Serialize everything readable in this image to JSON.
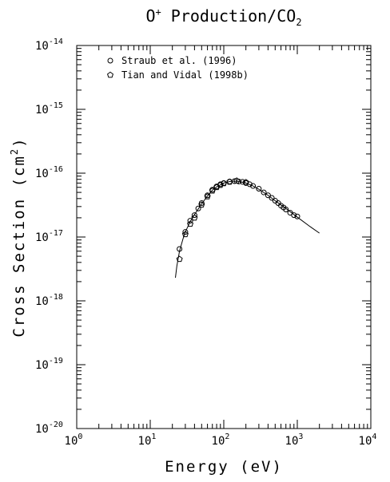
{
  "chart_data": {
    "type": "scatter",
    "title": {
      "base": "O",
      "sup": "+",
      "rest": " Production/CO",
      "sub": "2"
    },
    "xlabel": "Energy (eV)",
    "ylabel": {
      "base": "Cross Section (cm",
      "sup": "2",
      "end": ")"
    },
    "x_scale": "log",
    "y_scale": "log",
    "xlim": [
      1,
      10000
    ],
    "ylim": [
      1e-20,
      1e-14
    ],
    "x_ticks": [
      {
        "base": "10",
        "exp": "0"
      },
      {
        "base": "10",
        "exp": "1"
      },
      {
        "base": "10",
        "exp": "2"
      },
      {
        "base": "10",
        "exp": "3"
      },
      {
        "base": "10",
        "exp": "4"
      }
    ],
    "y_ticks": [
      {
        "base": "10",
        "exp": "-20"
      },
      {
        "base": "10",
        "exp": "-19"
      },
      {
        "base": "10",
        "exp": "-18"
      },
      {
        "base": "10",
        "exp": "-17"
      },
      {
        "base": "10",
        "exp": "-16"
      },
      {
        "base": "10",
        "exp": "-15"
      },
      {
        "base": "10",
        "exp": "-14"
      }
    ],
    "grid": false,
    "legend_position": "top-left",
    "series": [
      {
        "name": "Straub et al. (1996)",
        "marker": "circle",
        "x": [
          25,
          30,
          35,
          40,
          45,
          50,
          60,
          70,
          80,
          90,
          100,
          120,
          140,
          160,
          180,
          200,
          225,
          250,
          300,
          350,
          400,
          450,
          500,
          550,
          600,
          650,
          700,
          800,
          900,
          1000
        ],
        "y": [
          6.5e-18,
          1.2e-17,
          1.8e-17,
          2.2e-17,
          2.8e-17,
          3.4e-17,
          4.5e-17,
          5.5e-17,
          6.2e-17,
          6.7e-17,
          7e-17,
          7.4e-17,
          7.5e-17,
          7.4e-17,
          7.3e-17,
          7e-17,
          6.7e-17,
          6.3e-17,
          5.7e-17,
          5e-17,
          4.5e-17,
          4.1e-17,
          3.7e-17,
          3.4e-17,
          3.1e-17,
          2.9e-17,
          2.7e-17,
          2.4e-17,
          2.2e-17,
          2.1e-17
        ]
      },
      {
        "name": "Tian and Vidal (1998b)",
        "marker": "pentagon",
        "x": [
          25,
          30,
          35,
          40,
          50,
          60,
          70,
          80,
          90,
          100,
          120,
          150,
          200
        ],
        "y": [
          4.5e-18,
          1.1e-17,
          1.6e-17,
          2e-17,
          3.2e-17,
          4.3e-17,
          5.3e-17,
          6e-17,
          6.5e-17,
          6.9e-17,
          7.3e-17,
          7.6e-17,
          7.2e-17
        ]
      },
      {
        "name": "",
        "marker": "none",
        "line": true,
        "x": [
          22,
          23,
          25,
          28,
          30,
          35,
          40,
          50,
          60,
          70,
          80,
          100,
          120,
          150,
          200,
          250,
          300,
          400,
          500,
          700,
          1000,
          1500,
          2000
        ],
        "y": [
          2.3e-18,
          3.5e-18,
          6e-18,
          9.5e-18,
          1.2e-17,
          1.75e-17,
          2.25e-17,
          3.3e-17,
          4.4e-17,
          5.4e-17,
          6.1e-17,
          7e-17,
          7.4e-17,
          7.5e-17,
          7e-17,
          6.3e-17,
          5.6e-17,
          4.5e-17,
          3.7e-17,
          2.8e-17,
          2.05e-17,
          1.45e-17,
          1.15e-17
        ]
      }
    ]
  }
}
